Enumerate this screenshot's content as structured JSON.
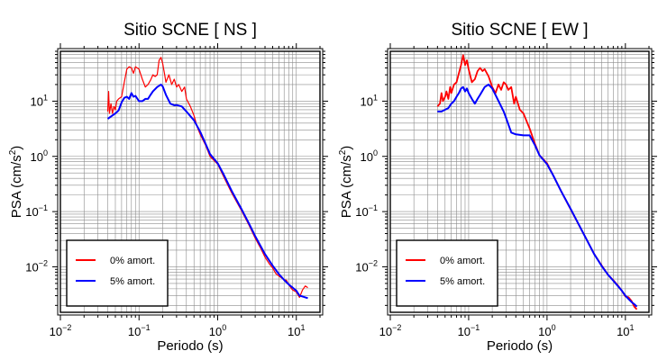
{
  "colors": {
    "series_0": "#ff0000",
    "series_5": "#0000ff",
    "grid": "#8c8c8c",
    "frame": "#000000"
  },
  "chart_data": [
    {
      "type": "line",
      "title": "Sitio SCNE [ NS ]",
      "xlabel": "Periodo (s)",
      "ylabel": "PSA (cm/s",
      "ylabel_sup": "2",
      "ylabel_tail": ")",
      "xscale": "log",
      "yscale": "log",
      "xlim": [
        0.01,
        20
      ],
      "ylim": [
        0.0015,
        80
      ],
      "grid": true,
      "legend_position": "bottom-left",
      "xticks": [
        {
          "v": 0.01,
          "base": "10",
          "exp": "−2"
        },
        {
          "v": 0.1,
          "base": "10",
          "exp": "−1"
        },
        {
          "v": 1,
          "base": "10",
          "exp": "0"
        },
        {
          "v": 10,
          "base": "10",
          "exp": "1"
        }
      ],
      "yticks": [
        {
          "v": 0.01,
          "base": "10",
          "exp": "−2"
        },
        {
          "v": 0.1,
          "base": "10",
          "exp": "−1"
        },
        {
          "v": 1,
          "base": "10",
          "exp": "0"
        },
        {
          "v": 10,
          "base": "10",
          "exp": "1"
        }
      ],
      "series": [
        {
          "name": "0% amort.",
          "color": "#ff0000",
          "width": 1.2,
          "x": [
            0.04,
            0.041,
            0.042,
            0.044,
            0.046,
            0.048,
            0.05,
            0.052,
            0.055,
            0.06,
            0.065,
            0.07,
            0.075,
            0.08,
            0.085,
            0.09,
            0.1,
            0.11,
            0.12,
            0.13,
            0.14,
            0.15,
            0.16,
            0.17,
            0.18,
            0.19,
            0.2,
            0.21,
            0.22,
            0.24,
            0.26,
            0.28,
            0.3,
            0.32,
            0.35,
            0.38,
            0.4,
            0.45,
            0.5,
            0.55,
            0.6,
            0.7,
            0.8,
            1,
            1.2,
            1.5,
            2,
            2.5,
            3,
            3.5,
            4,
            4.5,
            5,
            5.5,
            6,
            6.5,
            7,
            7.5,
            8,
            8.5,
            9,
            10,
            11,
            12,
            13,
            14
          ],
          "y": [
            6.5,
            15,
            6,
            9,
            6,
            8,
            7,
            10,
            11,
            12,
            22,
            38,
            42,
            40,
            32,
            42,
            38,
            25,
            18,
            20,
            24,
            30,
            28,
            30,
            55,
            62,
            48,
            32,
            22,
            30,
            20,
            25,
            18,
            20,
            15,
            18,
            11,
            8,
            5.5,
            3.4,
            2.5,
            1.6,
            1.0,
            0.72,
            0.42,
            0.22,
            0.105,
            0.057,
            0.033,
            0.022,
            0.015,
            0.0115,
            0.0095,
            0.0075,
            0.0068,
            0.0063,
            0.0058,
            0.0057,
            0.0048,
            0.0042,
            0.0038,
            0.0035,
            0.0028,
            0.0038,
            0.0045,
            0.0042
          ]
        },
        {
          "name": "5% amort.",
          "color": "#0000ff",
          "width": 2,
          "x": [
            0.04,
            0.045,
            0.05,
            0.055,
            0.06,
            0.065,
            0.07,
            0.075,
            0.08,
            0.085,
            0.09,
            0.1,
            0.11,
            0.12,
            0.13,
            0.14,
            0.15,
            0.17,
            0.19,
            0.2,
            0.22,
            0.25,
            0.28,
            0.3,
            0.35,
            0.4,
            0.5,
            0.6,
            0.7,
            0.8,
            1,
            1.2,
            1.5,
            2,
            2.5,
            3,
            4,
            5,
            6,
            7,
            8,
            9,
            10,
            11,
            12,
            13,
            14
          ],
          "y": [
            4.8,
            5.4,
            6,
            6.8,
            9.5,
            11.5,
            12,
            11,
            14,
            12,
            12.5,
            10,
            10,
            11,
            11,
            13,
            15,
            18,
            20,
            18.5,
            13,
            9,
            8.4,
            8.5,
            8,
            6.5,
            4.5,
            2.8,
            1.7,
            1.1,
            0.75,
            0.46,
            0.24,
            0.112,
            0.061,
            0.036,
            0.017,
            0.0105,
            0.0074,
            0.0058,
            0.0048,
            0.0042,
            0.0037,
            0.003,
            0.0029,
            0.0028,
            0.0027
          ]
        }
      ]
    },
    {
      "type": "line",
      "title": "Sitio SCNE [ EW ]",
      "xlabel": "Periodo (s)",
      "ylabel": "PSA (cm/s",
      "ylabel_sup": "2",
      "ylabel_tail": ")",
      "xscale": "log",
      "yscale": "log",
      "xlim": [
        0.01,
        20
      ],
      "ylim": [
        0.0015,
        80
      ],
      "grid": true,
      "legend_position": "bottom-left",
      "xticks": [
        {
          "v": 0.01,
          "base": "10",
          "exp": "−2"
        },
        {
          "v": 0.1,
          "base": "10",
          "exp": "−1"
        },
        {
          "v": 1,
          "base": "10",
          "exp": "0"
        },
        {
          "v": 10,
          "base": "10",
          "exp": "1"
        }
      ],
      "yticks": [
        {
          "v": 0.01,
          "base": "10",
          "exp": "−2"
        },
        {
          "v": 0.1,
          "base": "10",
          "exp": "−1"
        },
        {
          "v": 1,
          "base": "10",
          "exp": "0"
        },
        {
          "v": 10,
          "base": "10",
          "exp": "1"
        }
      ],
      "series": [
        {
          "name": "0% amort.",
          "color": "#ff0000",
          "width": 1.8,
          "x": [
            0.04,
            0.043,
            0.045,
            0.047,
            0.05,
            0.052,
            0.055,
            0.058,
            0.06,
            0.065,
            0.07,
            0.075,
            0.08,
            0.085,
            0.09,
            0.095,
            0.1,
            0.11,
            0.12,
            0.13,
            0.14,
            0.15,
            0.16,
            0.18,
            0.2,
            0.22,
            0.24,
            0.26,
            0.28,
            0.3,
            0.32,
            0.35,
            0.38,
            0.4,
            0.45,
            0.5,
            0.6,
            0.7,
            0.8,
            1,
            1.2,
            1.5,
            2,
            3,
            4,
            5,
            6,
            7,
            8,
            9,
            10,
            11,
            12,
            13,
            14
          ],
          "y": [
            8,
            9,
            14,
            10,
            12,
            15,
            11,
            18,
            14,
            20,
            22,
            32,
            45,
            68,
            45,
            55,
            38,
            22,
            25,
            35,
            40,
            35,
            38,
            28,
            18,
            14,
            20,
            16,
            22,
            20,
            16,
            18,
            9,
            12,
            7,
            6,
            3.2,
            1.7,
            1.05,
            0.75,
            0.45,
            0.24,
            0.11,
            0.037,
            0.017,
            0.0105,
            0.0072,
            0.0057,
            0.0046,
            0.0037,
            0.0029,
            0.0028,
            0.0024,
            0.0019,
            0.0017
          ]
        },
        {
          "name": "5% amort.",
          "color": "#0000ff",
          "width": 2,
          "x": [
            0.04,
            0.045,
            0.05,
            0.055,
            0.06,
            0.065,
            0.07,
            0.075,
            0.08,
            0.085,
            0.09,
            0.095,
            0.1,
            0.11,
            0.12,
            0.13,
            0.14,
            0.16,
            0.18,
            0.2,
            0.22,
            0.25,
            0.28,
            0.3,
            0.35,
            0.4,
            0.5,
            0.6,
            0.7,
            0.8,
            1,
            1.2,
            1.5,
            2,
            3,
            4,
            5,
            6,
            7,
            8,
            9,
            10,
            11,
            12,
            13,
            14
          ],
          "y": [
            6.5,
            6.5,
            7,
            7.5,
            9,
            10,
            12,
            14,
            17,
            18,
            15,
            17,
            14,
            11,
            9,
            11,
            13,
            18,
            20,
            17,
            13,
            9,
            6.5,
            5,
            2.7,
            2.5,
            2.4,
            2.4,
            1.6,
            1.05,
            0.72,
            0.45,
            0.24,
            0.112,
            0.037,
            0.017,
            0.0102,
            0.0072,
            0.0056,
            0.0045,
            0.0037,
            0.003,
            0.0026,
            0.0023,
            0.0021,
            0.0019
          ]
        }
      ]
    }
  ]
}
